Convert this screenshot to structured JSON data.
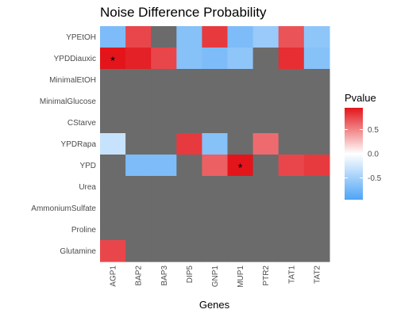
{
  "chart_data": {
    "type": "heatmap",
    "title": "Noise Difference Probability",
    "xlabel": "Genes",
    "ylabel": "",
    "x_categories": [
      "AGP1",
      "BAP2",
      "BAP3",
      "DIP5",
      "GNP1",
      "MUP1",
      "PTR2",
      "TAT1",
      "TAT2"
    ],
    "y_categories": [
      "YPEtOH",
      "YPDDiauxic",
      "MinimalEtOH",
      "MinimalGlucose",
      "CStarve",
      "YPDRapa",
      "YPD",
      "Urea",
      "AmmoniumSulfate",
      "Proline",
      "Glutamine"
    ],
    "values": [
      [
        -0.7,
        0.75,
        null,
        -0.65,
        0.8,
        -0.7,
        -0.55,
        0.7,
        -0.6
      ],
      [
        0.95,
        0.9,
        0.75,
        -0.65,
        -0.7,
        -0.6,
        null,
        0.85,
        -0.65
      ],
      [
        null,
        null,
        null,
        null,
        null,
        null,
        null,
        null,
        null
      ],
      [
        null,
        null,
        null,
        null,
        null,
        null,
        null,
        null,
        null
      ],
      [
        null,
        null,
        null,
        null,
        null,
        null,
        null,
        null,
        null
      ],
      [
        -0.3,
        null,
        null,
        0.8,
        -0.65,
        null,
        0.6,
        null,
        null
      ],
      [
        null,
        -0.7,
        -0.7,
        null,
        0.65,
        0.95,
        null,
        0.75,
        0.8
      ],
      [
        null,
        null,
        null,
        null,
        null,
        null,
        null,
        null,
        null
      ],
      [
        null,
        null,
        null,
        null,
        null,
        null,
        null,
        null,
        null
      ],
      [
        null,
        null,
        null,
        null,
        null,
        null,
        null,
        null,
        null
      ],
      [
        0.75,
        null,
        null,
        null,
        null,
        null,
        null,
        null,
        null
      ]
    ],
    "annotations": [
      {
        "row": "YPDDiauxic",
        "col": "AGP1",
        "text": "*"
      },
      {
        "row": "YPD",
        "col": "MUP1",
        "text": "*"
      }
    ],
    "legend": {
      "title": "Pvalue",
      "ticks": [
        0.5,
        0.0,
        -0.5
      ],
      "tick_labels": [
        "0.5",
        "0.0",
        "-0.5"
      ],
      "range": [
        -0.95,
        0.95
      ],
      "placement": "right"
    },
    "na_color": "#6b6b6b",
    "color_low": "#4ea4f5",
    "color_mid": "#ffffff",
    "color_high": "#e3151b",
    "grid": false
  }
}
